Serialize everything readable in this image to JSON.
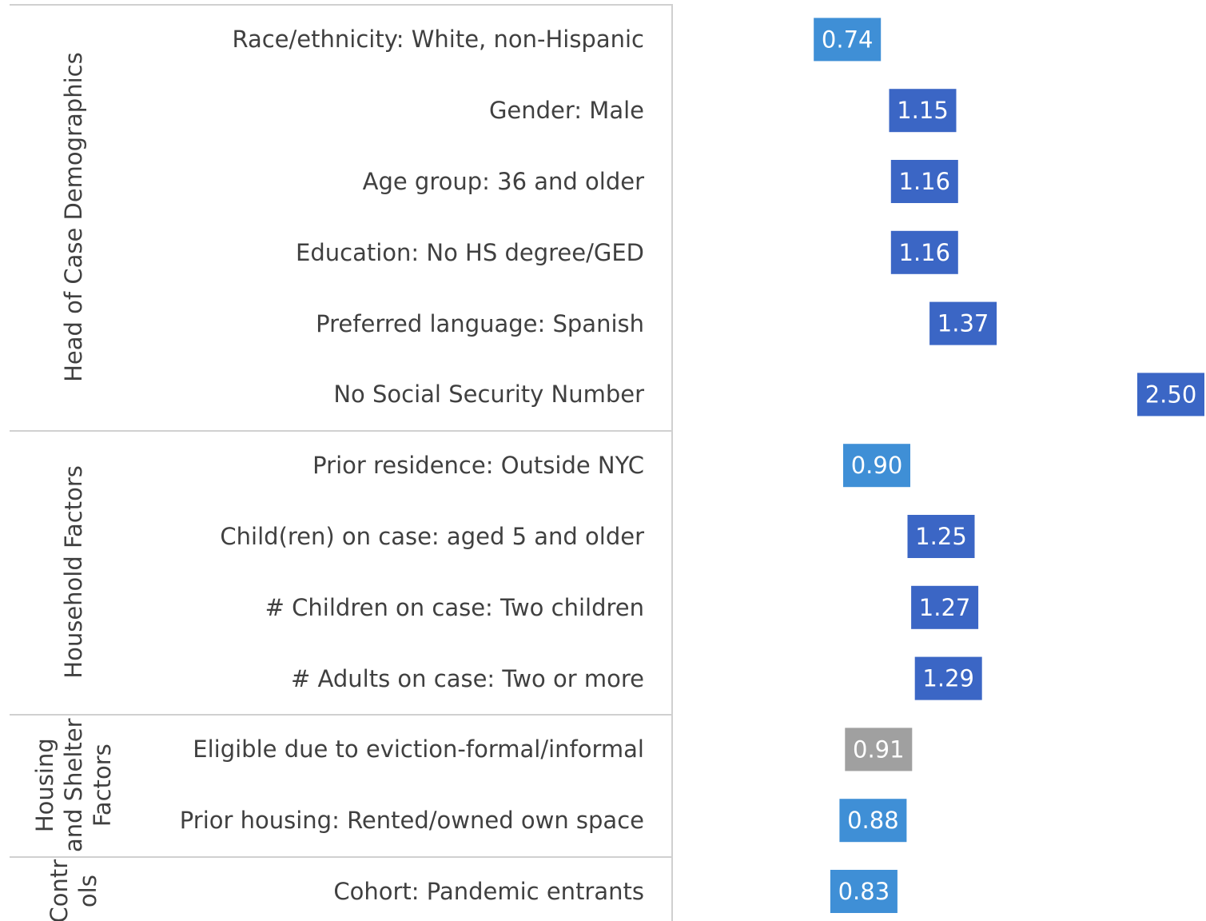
{
  "chart_data": {
    "type": "dot",
    "xlim": [
      0,
      2.7
    ],
    "groups": [
      {
        "name": "Head of Case Demographics",
        "categories": [
          "Race/ethnicity: White, non-Hispanic",
          "Gender: Male",
          "Age group: 36 and older",
          "Education: No HS degree/GED",
          "Preferred language: Spanish",
          "No Social Security Number"
        ],
        "values": [
          0.74,
          1.15,
          1.16,
          1.16,
          1.37,
          2.5
        ],
        "value_labels": [
          "0.74",
          "1.15",
          "1.16",
          "1.16",
          "1.37",
          "2.50"
        ],
        "colors": [
          "#3f8fd6",
          "#3b66c5",
          "#3b66c5",
          "#3b66c5",
          "#3b66c5",
          "#3b66c5"
        ]
      },
      {
        "name": "Household Factors",
        "categories": [
          "Prior residence: Outside NYC",
          "Child(ren) on case: aged 5 and older",
          "# Children on case: Two children",
          "# Adults on case: Two or more"
        ],
        "values": [
          0.9,
          1.25,
          1.27,
          1.29
        ],
        "value_labels": [
          "0.90",
          "1.25",
          "1.27",
          "1.29"
        ],
        "colors": [
          "#3f8fd6",
          "#3b66c5",
          "#3b66c5",
          "#3b66c5"
        ]
      },
      {
        "name": "Housing and Shelter Factors",
        "categories": [
          "Eligible due to eviction-formal/informal",
          "Prior housing: Rented/owned own space"
        ],
        "values": [
          0.91,
          0.88
        ],
        "value_labels": [
          "0.91",
          "0.88"
        ],
        "colors": [
          "#a0a0a0",
          "#3f8fd6"
        ]
      },
      {
        "name": "Controls",
        "categories": [
          "Cohort: Pandemic entrants"
        ],
        "values": [
          0.83
        ],
        "value_labels": [
          "0.83"
        ],
        "colors": [
          "#3f8fd6"
        ]
      }
    ]
  }
}
